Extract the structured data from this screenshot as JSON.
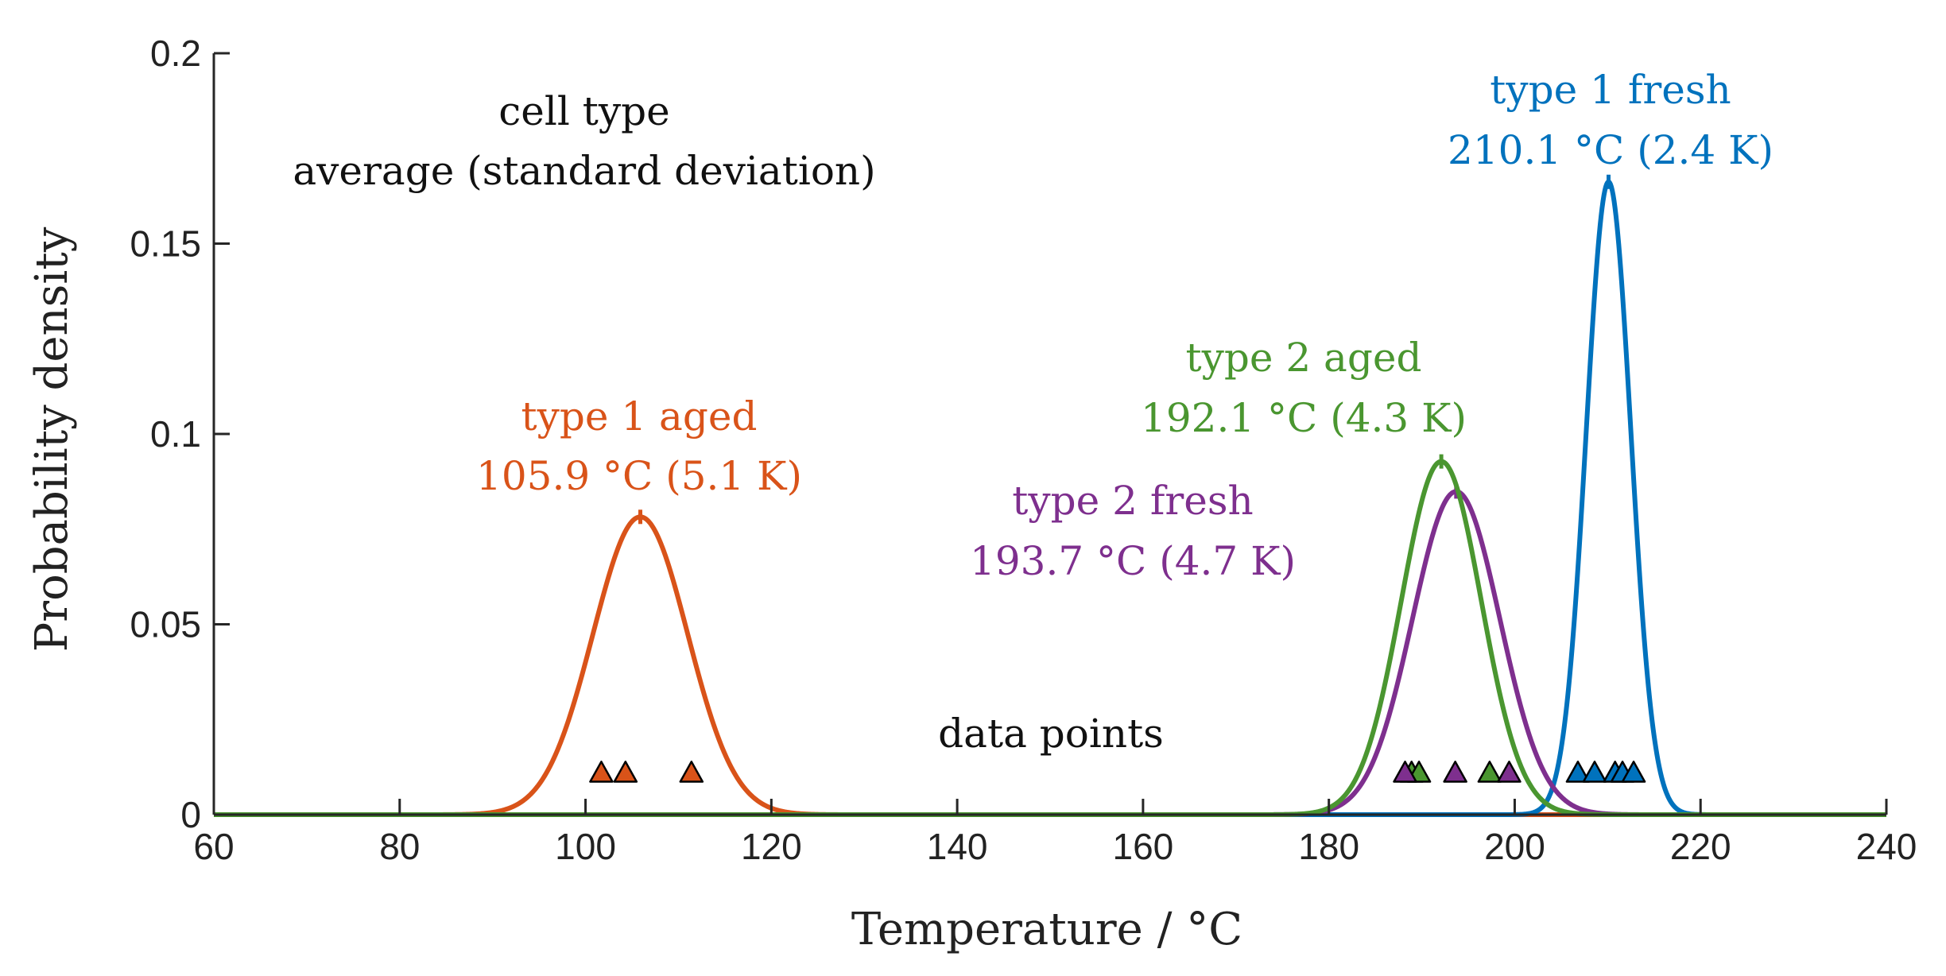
{
  "chart_data": {
    "type": "line",
    "title": "",
    "xlabel": "Temperature / °C",
    "ylabel": "Probability density",
    "xlim": [
      60,
      240
    ],
    "ylim": [
      0,
      0.2
    ],
    "xticks": [
      60,
      80,
      100,
      120,
      140,
      160,
      180,
      200,
      220,
      240
    ],
    "xtick_labels": [
      "60",
      "80",
      "100",
      "120",
      "140",
      "160",
      "180",
      "200",
      "220",
      "240"
    ],
    "yticks": [
      0,
      0.05,
      0.1,
      0.15,
      0.2
    ],
    "ytick_labels": [
      "0",
      "0.05",
      "0.1",
      "0.15",
      "0.2"
    ],
    "grid": false,
    "legend_header": {
      "line1": "cell type",
      "line2": "average (standard deviation)"
    },
    "data_points_label": "data points",
    "series": [
      {
        "name": "type 1 fresh",
        "color": "#0072bd",
        "mean": 210.1,
        "std": 2.4,
        "label_line1": "type 1 fresh",
        "label_line2": "210.1 °C (2.4 K)",
        "points": [
          206.8,
          208.6,
          210.8,
          211.6,
          212.8
        ]
      },
      {
        "name": "type 1 aged",
        "color": "#d95319",
        "mean": 105.9,
        "std": 5.1,
        "label_line1": "type 1 aged",
        "label_line2": "105.9 °C (5.1 K)",
        "points": [
          101.7,
          104.3,
          111.4
        ]
      },
      {
        "name": "type 2 fresh",
        "color": "#7e2f8e",
        "mean": 193.7,
        "std": 4.7,
        "label_line1": "type 2 fresh",
        "label_line2": "193.7 °C (4.7 K)",
        "points": [
          188.2,
          193.6,
          199.4
        ]
      },
      {
        "name": "type 2 aged",
        "color": "#4a9630",
        "mean": 192.1,
        "std": 4.3,
        "label_line1": "type 2 aged",
        "label_line2": "192.1 °C (4.3 K)",
        "points": [
          188.9,
          189.7,
          197.3
        ]
      }
    ]
  }
}
